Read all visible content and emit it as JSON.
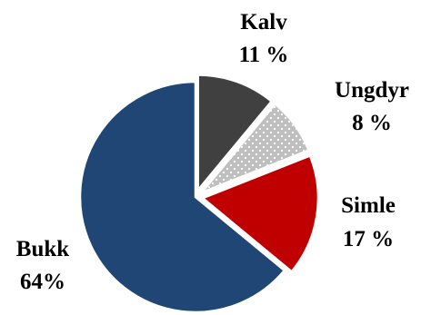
{
  "chart_data": {
    "type": "pie",
    "start": "12 o'clock",
    "direction": "clockwise",
    "slices": [
      {
        "label": "Kalv",
        "value_label": "11 %",
        "value": 11,
        "color": "#404040",
        "pattern": "solid",
        "exploded": true
      },
      {
        "label": "Ungdyr",
        "value_label": "8 %",
        "value": 8,
        "color": "#bfbfbf",
        "pattern": "dotted",
        "exploded": true
      },
      {
        "label": "Simle",
        "value_label": "17 %",
        "value": 17,
        "color": "#c00000",
        "pattern": "solid",
        "exploded": true
      },
      {
        "label": "Bukk",
        "value_label": "64%",
        "value": 64,
        "color": "#1f4674",
        "pattern": "solid",
        "exploded": false
      }
    ]
  }
}
